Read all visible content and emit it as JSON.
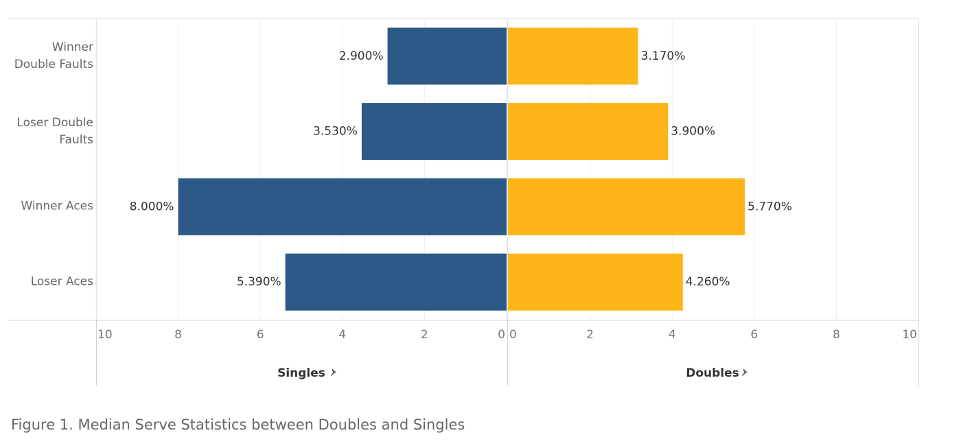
{
  "chart_data": {
    "type": "bar",
    "orientation": "horizontal",
    "caption": "Figure 1. Median Serve Statistics between Doubles and Singles",
    "categories": [
      "Winner Double Faults",
      "Loser Double Faults",
      "Winner Aces",
      "Loser Aces"
    ],
    "series": [
      {
        "name": "Singles",
        "color": "#2c5985",
        "values": [
          2.9,
          3.53,
          8.0,
          5.39
        ],
        "value_labels": [
          "2.900%",
          "3.530%",
          "8.000%",
          "5.390%"
        ],
        "xlim": [
          10,
          0
        ],
        "xticks": [
          10,
          8,
          6,
          4,
          2,
          0
        ]
      },
      {
        "name": "Doubles",
        "color": "#fdb517",
        "values": [
          3.17,
          3.9,
          5.77,
          4.26
        ],
        "value_labels": [
          "3.170%",
          "3.900%",
          "5.770%",
          "4.260%"
        ],
        "xlim": [
          0,
          10
        ],
        "xticks": [
          0,
          2,
          4,
          6,
          8,
          10
        ]
      }
    ],
    "grid": true
  }
}
